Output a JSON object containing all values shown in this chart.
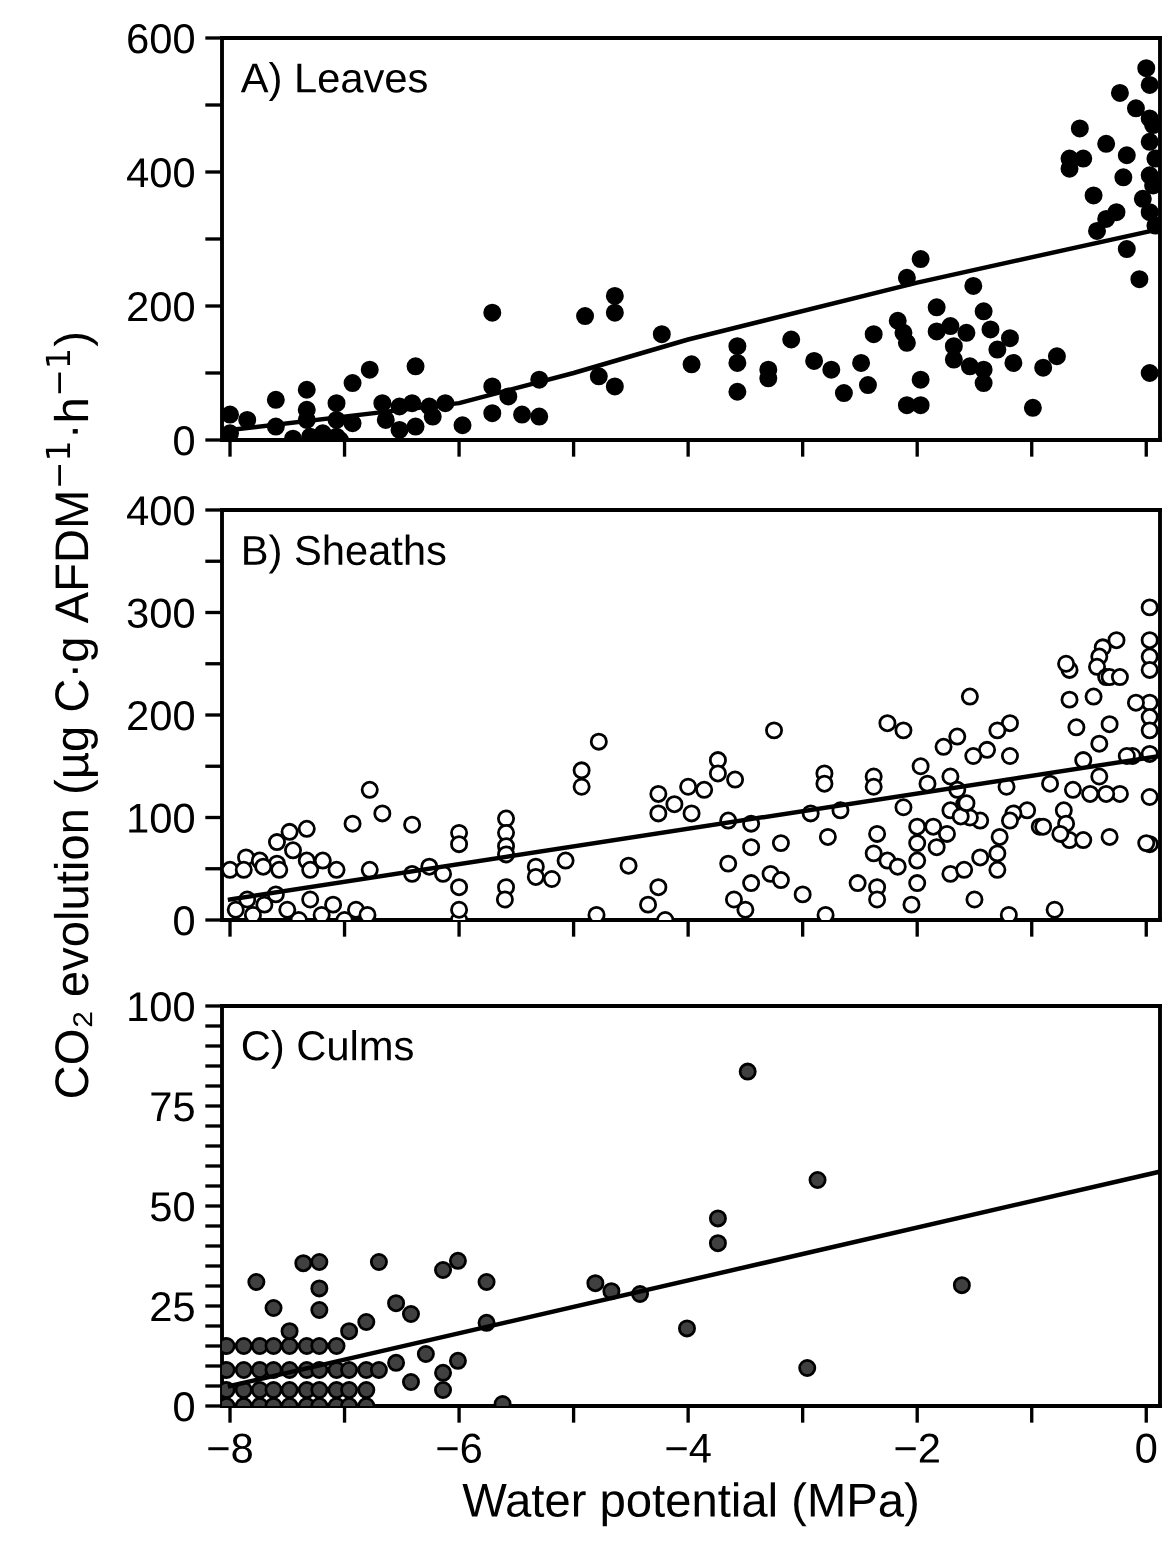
{
  "chart_data": [
    {
      "type": "scatter",
      "title": "A) Leaves",
      "xlim": [
        -8.07,
        0.12
      ],
      "xticks": [
        -8,
        {
          "value": -7,
          "label": null
        },
        -6,
        {
          "value": -5,
          "label": null
        },
        -4,
        {
          "value": -3,
          "label": null
        },
        -2,
        {
          "value": -1,
          "label": null
        },
        0
      ],
      "ylim": [
        0,
        600
      ],
      "yticks": [
        0,
        {
          "value": 100,
          "label": null
        },
        200,
        {
          "value": 300,
          "label": null
        },
        400,
        {
          "value": 500,
          "label": null
        },
        600
      ],
      "tick_labels": "y",
      "marker": "circle",
      "series": [
        {
          "type": "scatter",
          "color": "#000000",
          "x": [
            -8.0,
            -7.85,
            -8.0,
            -7.6,
            -7.6,
            -7.45,
            -7.33,
            -7.33,
            -7.33,
            -7.3,
            -7.19,
            -7.07,
            -7.07,
            -7.07,
            -7.04,
            -6.93,
            -6.93,
            -6.78,
            -6.67,
            -6.64,
            -6.52,
            -6.52,
            -6.41,
            -6.38,
            -6.38,
            -6.26,
            -6.23,
            -6.12,
            -5.97,
            -5.71,
            -5.71,
            -5.71,
            -5.57,
            -5.45,
            -5.3,
            -5.3,
            -4.9,
            -4.78,
            -4.64,
            -4.64,
            -4.64,
            -4.23,
            -3.97,
            -3.57,
            -3.57,
            -3.57,
            -3.3,
            -3.3,
            -3.1,
            -2.9,
            -2.75,
            -2.64,
            -2.49,
            -2.43,
            -2.38,
            -2.17,
            -2.12,
            -2.09,
            -2.09,
            -2.09,
            -1.97,
            -1.97,
            -1.97,
            -1.83,
            -1.83,
            -1.71,
            -1.68,
            -1.68,
            -1.57,
            -1.54,
            -1.51,
            -1.42,
            -1.42,
            -1.42,
            -1.36,
            -1.3,
            -1.19,
            -1.16,
            -0.99,
            -0.9,
            -0.78,
            -0.67,
            -0.67,
            -0.55,
            -0.58,
            -0.46,
            -0.43,
            -0.35,
            -0.35,
            -0.26,
            -0.23,
            -0.2,
            -0.17,
            -0.17,
            -0.09,
            -0.06,
            -0.03,
            0.0,
            0.03,
            0.03,
            0.03,
            0.03,
            0.03,
            0.03,
            0.06,
            0.06,
            0.08,
            0.08
          ],
          "values": [
            38,
            30,
            10,
            60,
            20,
            2,
            75,
            45,
            30,
            5,
            10,
            55,
            30,
            5,
            0,
            25,
            85,
            105,
            55,
            30,
            50,
            15,
            55,
            110,
            20,
            50,
            35,
            55,
            22,
            190,
            80,
            40,
            65,
            38,
            35,
            90,
            185,
            95,
            215,
            190,
            80,
            158,
            113,
            140,
            115,
            72,
            105,
            92,
            150,
            118,
            105,
            70,
            115,
            82,
            158,
            178,
            160,
            242,
            145,
            52,
            270,
            90,
            52,
            198,
            162,
            170,
            140,
            120,
            160,
            110,
            230,
            192,
            105,
            85,
            165,
            135,
            152,
            115,
            48,
            108,
            125,
            420,
            405,
            420,
            465,
            365,
            312,
            442,
            330,
            340,
            518,
            392,
            425,
            285,
            495,
            240,
            360,
            555,
            100,
            530,
            480,
            445,
            395,
            340,
            470,
            380,
            320,
            420
          ]
        },
        {
          "type": "line",
          "color": "#000000",
          "marker": "none",
          "x": [
            -8,
            -6,
            -5,
            -4,
            -2,
            0.12
          ],
          "values": [
            15,
            55,
            100,
            150,
            235,
            315
          ]
        }
      ]
    },
    {
      "type": "scatter",
      "title": "B) Sheaths",
      "ylabel": "CO₂ evolution (µg C·g AFDM$^{−1}$·h$^{−1}$)",
      "xlim": [
        -8.07,
        0.12
      ],
      "xticks": [
        -8,
        {
          "value": -7,
          "label": null
        },
        -6,
        {
          "value": -5,
          "label": null
        },
        -4,
        {
          "value": -3,
          "label": null
        },
        -2,
        {
          "value": -1,
          "label": null
        },
        0
      ],
      "ylim": [
        0,
        400
      ],
      "yticks": [
        0,
        {
          "value": 50,
          "label": null
        },
        100,
        {
          "value": 150,
          "label": null
        },
        200,
        {
          "value": 250,
          "label": null
        },
        300,
        {
          "value": 350,
          "label": null
        },
        400
      ],
      "tick_labels": "y",
      "marker": "circle",
      "series": [
        {
          "type": "scatter",
          "color": "#ffffff",
          "x": [
            0.03,
            0.03,
            0.03,
            0.03,
            0.03,
            0.03,
            0.03,
            0.03,
            0.03,
            0.03,
            -0.09,
            -0.12,
            -0.17,
            -0.26,
            -0.38,
            -0.41,
            -0.43,
            -0.35,
            -0.32,
            -0.46,
            -0.23,
            -0.32,
            -0.41,
            -0.55,
            -0.67,
            -0.7,
            -0.67,
            -0.61,
            -0.49,
            -0.41,
            -0.23,
            -0.35,
            -0.64,
            -0.72,
            -0.7,
            -0.67,
            -0.55,
            -0.32,
            -0.84,
            -0.75,
            -0.93,
            -1.54,
            -1.19,
            -1.3,
            -1.39,
            -1.51,
            -1.19,
            -1.65,
            -1.77,
            -2.26,
            -2.12,
            -1.97,
            -1.91,
            -1.71,
            -1.65,
            -1.22,
            -1.04,
            -1.16,
            -0.9,
            -2.12,
            -1.71,
            -1.59,
            -1.45,
            -1.54,
            -1.19,
            -2.81,
            -2.81,
            -2.38,
            -2.38,
            -3.25,
            -3.74,
            -3.74,
            -3.59,
            -4.0,
            -3.86,
            -4.26,
            -4.26,
            -4.12,
            -3.97,
            -3.65,
            -3.45,
            -2.93,
            -2.67,
            -4.93,
            -4.93,
            -4.78,
            -6.78,
            -6.93,
            -6.67,
            -6.41,
            -6.0,
            -6.0,
            -5.59,
            -5.59,
            -5.59,
            -5.59,
            -7.33,
            -7.48,
            -7.59,
            -7.45,
            -7.86,
            -7.74,
            -7.59,
            -7.33,
            -7.19,
            -8.0,
            -7.88,
            -7.71,
            -7.57,
            -7.3,
            -7.07,
            -6.78,
            -6.41,
            -6.26,
            -6.14,
            -6.0,
            -5.59,
            -5.33,
            -5.33,
            -5.19,
            -5.07,
            -4.52,
            -4.26,
            -3.65,
            -3.45,
            -3.19,
            -2.78,
            -3.45,
            -3.28,
            -3.19,
            -2.52,
            -2.35,
            -2.38,
            -2.26,
            -2.17,
            -2.35,
            -2.0,
            -2.0,
            -2.0,
            -2.0,
            -1.86,
            -1.83,
            -1.74,
            -1.62,
            -1.57,
            -1.71,
            -1.59,
            -1.45,
            -1.3,
            -1.3,
            -1.28,
            0.0,
            -7.95,
            -7.85,
            -7.8,
            -7.7,
            -7.6,
            -7.5,
            -7.4,
            -7.3,
            -7.2,
            -7.1,
            -7.0,
            -6.9,
            -6.8,
            -6.0,
            -6.0,
            -5.6,
            -4.8,
            -4.35,
            -4.2,
            -3.6,
            -3.5,
            -3.0,
            -2.8,
            -2.35,
            -2.05,
            -1.5,
            -1.2,
            -0.8
          ],
          "values": [
            305,
            273,
            257,
            244,
            212,
            198,
            185,
            162,
            120,
            74,
            212,
            160,
            160,
            273,
            266,
            257,
            247,
            237,
            237,
            218,
            237,
            191,
            172,
            156,
            244,
            250,
            215,
            188,
            123,
            140,
            123,
            123,
            127,
            107,
            94,
            78,
            78,
            81,
            133,
            84,
            91,
            218,
            192,
            185,
            166,
            160,
            160,
            179,
            169,
            192,
            185,
            150,
            133,
            140,
            127,
            130,
            107,
            104,
            91,
            110,
            107,
            113,
            97,
            100,
            97,
            143,
            133,
            140,
            130,
            185,
            156,
            143,
            137,
            130,
            127,
            123,
            104,
            113,
            104,
            97,
            94,
            104,
            107,
            146,
            130,
            174,
            127,
            94,
            104,
            93,
            85,
            74,
            99,
            85,
            72,
            64,
            89,
            86,
            76,
            68,
            61,
            58,
            55,
            58,
            58,
            49,
            49,
            52,
            49,
            49,
            49,
            49,
            45,
            52,
            45,
            32,
            32,
            52,
            42,
            40,
            58,
            53,
            32,
            55,
            71,
            75,
            81,
            36,
            45,
            39,
            36,
            84,
            65,
            58,
            52,
            32,
            91,
            75,
            58,
            36,
            91,
            71,
            84,
            101,
            114,
            45,
            49,
            61,
            65,
            49,
            81,
            75,
            10,
            20,
            5,
            15,
            25,
            10,
            0,
            20,
            5,
            15,
            0,
            10,
            5,
            0,
            10,
            20,
            5,
            15,
            0,
            20,
            10,
            25,
            5,
            20,
            15,
            20,
            5,
            10
          ]
        },
        {
          "type": "line",
          "color": "#000000",
          "marker": "none",
          "x": [
            -8,
            0.12
          ],
          "values": [
            20,
            160
          ]
        }
      ]
    },
    {
      "type": "scatter",
      "title": "C) Culms",
      "xlabel": "Water potential (MPa)",
      "xlim": [
        -8.07,
        0.12
      ],
      "xticks": [
        -8,
        {
          "value": -7,
          "label": null
        },
        -6,
        {
          "value": -5,
          "label": null
        },
        -4,
        {
          "value": -3,
          "label": null
        },
        -2,
        {
          "value": -1,
          "label": null
        },
        0
      ],
      "ylim": [
        0,
        100
      ],
      "yticks": [
        0,
        {
          "value": 5,
          "label": null
        },
        {
          "value": 10,
          "label": null
        },
        {
          "value": 15,
          "label": null
        },
        {
          "value": 20,
          "label": null
        },
        25,
        {
          "value": 30,
          "label": null
        },
        {
          "value": 35,
          "label": null
        },
        {
          "value": 40,
          "label": null
        },
        {
          "value": 45,
          "label": null
        },
        50,
        {
          "value": 55,
          "label": null
        },
        {
          "value": 60,
          "label": null
        },
        {
          "value": 65,
          "label": null
        },
        {
          "value": 70,
          "label": null
        },
        75,
        {
          "value": 80,
          "label": null
        },
        {
          "value": 85,
          "label": null
        },
        {
          "value": 90,
          "label": null
        },
        {
          "value": 95,
          "label": null
        },
        100
      ],
      "marker": "circle",
      "series": [
        {
          "type": "scatter",
          "color": "#404040",
          "x": [
            -8.03,
            -7.88,
            -7.74,
            -7.62,
            -7.48,
            -7.33,
            -7.22,
            -7.07,
            -6.96,
            -6.81,
            -8.03,
            -7.88,
            -7.74,
            -7.62,
            -7.48,
            -7.33,
            -7.22,
            -7.07,
            -6.96,
            -6.81,
            -8.03,
            -7.88,
            -7.74,
            -7.62,
            -7.48,
            -7.33,
            -7.22,
            -7.07,
            -6.96,
            -6.81,
            -8.03,
            -7.88,
            -7.74,
            -7.62,
            -7.48,
            -7.33,
            -7.22,
            -7.07,
            -7.77,
            -7.62,
            -7.48,
            -7.36,
            -7.22,
            -7.22,
            -7.22,
            -6.96,
            -6.81,
            -6.7,
            -6.7,
            -6.55,
            -6.55,
            -6.42,
            -6.42,
            -6.29,
            -6.14,
            -6.14,
            -6.14,
            -6.01,
            -6.01,
            -5.76,
            -5.76,
            -5.62,
            -4.81,
            -4.67,
            -4.42,
            -4.01,
            -3.74,
            -3.74,
            -3.48,
            -2.96,
            -2.87,
            -1.61
          ],
          "values": [
            0,
            0,
            0,
            0,
            0,
            0,
            0,
            0,
            0,
            0,
            4,
            4,
            4,
            4,
            4,
            4,
            4,
            4,
            4,
            4,
            9,
            9,
            9,
            9,
            9,
            9,
            9,
            9,
            9,
            9,
            15,
            15,
            15,
            15,
            15,
            15,
            15,
            15,
            31,
            24.5,
            18.7,
            35.7,
            36,
            29.4,
            24,
            18.7,
            21,
            36,
            9,
            25.7,
            10.8,
            23,
            6,
            13,
            34,
            8.3,
            4,
            36.3,
            11.3,
            31,
            20.8,
            0.5,
            30.7,
            28.7,
            28,
            19.4,
            46.9,
            40.7,
            83.6,
            9.5,
            56.5,
            30.2
          ]
        },
        {
          "type": "line",
          "color": "#000000",
          "marker": "none",
          "x": [
            -8,
            0.12
          ],
          "values": [
            5,
            58.6
          ]
        }
      ]
    }
  ]
}
